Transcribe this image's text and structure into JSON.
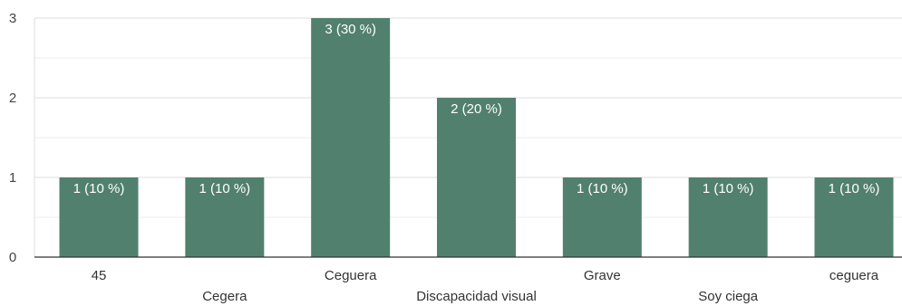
{
  "chart_data": {
    "type": "bar",
    "categories": [
      "45",
      "Cegera",
      "Ceguera",
      "Discapacidad visual",
      "Grave",
      "Soy ciega",
      "ceguera"
    ],
    "values": [
      1,
      1,
      3,
      2,
      1,
      1,
      1
    ],
    "data_labels": [
      "1 (10 %)",
      "1 (10 %)",
      "3 (30 %)",
      "2 (20 %)",
      "1 (10 %)",
      "1 (10 %)",
      "1 (10 %)"
    ],
    "y_ticks": [
      "0",
      "1",
      "2",
      "3"
    ],
    "ylim": [
      0,
      3
    ],
    "grid": true,
    "bar_color": "#52806f",
    "title": "",
    "xlabel": "",
    "ylabel": ""
  }
}
